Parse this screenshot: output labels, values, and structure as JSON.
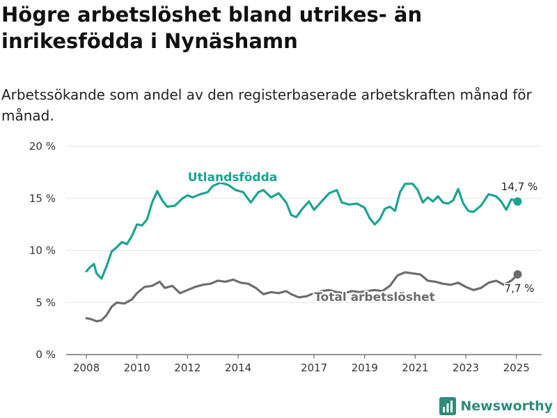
{
  "title": "Högre arbetslöshet bland utrikes- än inrikesfödda i Nynäshamn",
  "subtitle": "Arbetssökande som andel av den registerbaserade arbetskraften månad för månad.",
  "brand": {
    "name": "Newsworthy",
    "logo_icon": "bar-chart-logo-icon",
    "color": "#2e8b7a"
  },
  "chart_data": {
    "type": "line",
    "x_ticks": [
      "2008",
      "2010",
      "2012",
      "2014",
      "2017",
      "2019",
      "2021",
      "2023",
      "2025"
    ],
    "x_tick_values": [
      2008,
      2010,
      2012,
      2014,
      2017,
      2019,
      2021,
      2023,
      2025
    ],
    "x_range": [
      2007.2,
      2026.0
    ],
    "y_ticks": [
      "0 %",
      "5 %",
      "10 %",
      "15 %",
      "20 %"
    ],
    "y_tick_values": [
      0,
      5,
      10,
      15,
      20
    ],
    "ylim": [
      0,
      20
    ],
    "grid": "horizontal",
    "series": [
      {
        "name": "Utlandsfödda",
        "color": "#1aa391",
        "end_label": "14,7 %",
        "points": [
          [
            2008.0,
            8.0
          ],
          [
            2008.15,
            8.4
          ],
          [
            2008.3,
            8.7
          ],
          [
            2008.4,
            7.8
          ],
          [
            2008.6,
            7.3
          ],
          [
            2008.8,
            8.5
          ],
          [
            2009.0,
            9.9
          ],
          [
            2009.2,
            10.3
          ],
          [
            2009.4,
            10.8
          ],
          [
            2009.6,
            10.6
          ],
          [
            2009.8,
            11.4
          ],
          [
            2010.0,
            12.5
          ],
          [
            2010.2,
            12.4
          ],
          [
            2010.4,
            13.0
          ],
          [
            2010.6,
            14.6
          ],
          [
            2010.8,
            15.7
          ],
          [
            2011.0,
            14.8
          ],
          [
            2011.2,
            14.2
          ],
          [
            2011.5,
            14.3
          ],
          [
            2011.8,
            15.0
          ],
          [
            2012.0,
            15.3
          ],
          [
            2012.2,
            15.1
          ],
          [
            2012.5,
            15.4
          ],
          [
            2012.8,
            15.6
          ],
          [
            2013.0,
            16.2
          ],
          [
            2013.3,
            16.5
          ],
          [
            2013.6,
            16.3
          ],
          [
            2013.9,
            15.8
          ],
          [
            2014.2,
            15.6
          ],
          [
            2014.5,
            14.6
          ],
          [
            2014.8,
            15.6
          ],
          [
            2015.0,
            15.8
          ],
          [
            2015.3,
            15.1
          ],
          [
            2015.6,
            15.5
          ],
          [
            2015.9,
            14.6
          ],
          [
            2016.1,
            13.4
          ],
          [
            2016.3,
            13.2
          ],
          [
            2016.5,
            13.9
          ],
          [
            2016.8,
            14.7
          ],
          [
            2017.0,
            13.9
          ],
          [
            2017.3,
            14.7
          ],
          [
            2017.6,
            15.5
          ],
          [
            2017.9,
            15.8
          ],
          [
            2018.1,
            14.6
          ],
          [
            2018.4,
            14.4
          ],
          [
            2018.7,
            14.5
          ],
          [
            2019.0,
            14.1
          ],
          [
            2019.2,
            13.1
          ],
          [
            2019.4,
            12.5
          ],
          [
            2019.6,
            13.0
          ],
          [
            2019.8,
            14.0
          ],
          [
            2020.0,
            14.2
          ],
          [
            2020.2,
            13.8
          ],
          [
            2020.4,
            15.6
          ],
          [
            2020.6,
            16.4
          ],
          [
            2020.9,
            16.4
          ],
          [
            2021.1,
            15.8
          ],
          [
            2021.3,
            14.6
          ],
          [
            2021.5,
            15.1
          ],
          [
            2021.7,
            14.7
          ],
          [
            2021.9,
            15.2
          ],
          [
            2022.1,
            14.6
          ],
          [
            2022.3,
            14.5
          ],
          [
            2022.5,
            14.8
          ],
          [
            2022.7,
            15.9
          ],
          [
            2022.9,
            14.5
          ],
          [
            2023.1,
            13.8
          ],
          [
            2023.3,
            13.7
          ],
          [
            2023.6,
            14.3
          ],
          [
            2023.9,
            15.4
          ],
          [
            2024.2,
            15.2
          ],
          [
            2024.4,
            14.7
          ],
          [
            2024.6,
            13.9
          ],
          [
            2024.8,
            14.9
          ],
          [
            2025.05,
            14.7
          ]
        ]
      },
      {
        "name": "Total arbetslöshet",
        "color": "#6c6c70",
        "end_label": "7,7 %",
        "points": [
          [
            2008.0,
            3.5
          ],
          [
            2008.2,
            3.4
          ],
          [
            2008.4,
            3.2
          ],
          [
            2008.6,
            3.3
          ],
          [
            2008.8,
            3.8
          ],
          [
            2009.0,
            4.6
          ],
          [
            2009.2,
            5.0
          ],
          [
            2009.5,
            4.9
          ],
          [
            2009.8,
            5.3
          ],
          [
            2010.0,
            5.9
          ],
          [
            2010.3,
            6.5
          ],
          [
            2010.6,
            6.6
          ],
          [
            2010.9,
            7.0
          ],
          [
            2011.1,
            6.4
          ],
          [
            2011.4,
            6.6
          ],
          [
            2011.7,
            5.9
          ],
          [
            2012.0,
            6.2
          ],
          [
            2012.3,
            6.5
          ],
          [
            2012.6,
            6.7
          ],
          [
            2012.9,
            6.8
          ],
          [
            2013.2,
            7.1
          ],
          [
            2013.5,
            7.0
          ],
          [
            2013.8,
            7.2
          ],
          [
            2014.1,
            6.9
          ],
          [
            2014.4,
            6.8
          ],
          [
            2014.7,
            6.4
          ],
          [
            2015.0,
            5.8
          ],
          [
            2015.3,
            6.0
          ],
          [
            2015.6,
            5.9
          ],
          [
            2015.9,
            6.1
          ],
          [
            2016.1,
            5.8
          ],
          [
            2016.4,
            5.5
          ],
          [
            2016.7,
            5.6
          ],
          [
            2017.0,
            5.9
          ],
          [
            2017.3,
            6.1
          ],
          [
            2017.6,
            6.2
          ],
          [
            2017.9,
            6.0
          ],
          [
            2018.2,
            5.9
          ],
          [
            2018.5,
            6.1
          ],
          [
            2018.8,
            6.0
          ],
          [
            2019.1,
            6.1
          ],
          [
            2019.4,
            6.2
          ],
          [
            2019.7,
            6.1
          ],
          [
            2020.0,
            6.6
          ],
          [
            2020.3,
            7.6
          ],
          [
            2020.6,
            7.9
          ],
          [
            2020.9,
            7.8
          ],
          [
            2021.2,
            7.7
          ],
          [
            2021.5,
            7.1
          ],
          [
            2021.8,
            7.0
          ],
          [
            2022.1,
            6.8
          ],
          [
            2022.4,
            6.7
          ],
          [
            2022.7,
            6.9
          ],
          [
            2023.0,
            6.5
          ],
          [
            2023.3,
            6.2
          ],
          [
            2023.6,
            6.4
          ],
          [
            2023.9,
            6.9
          ],
          [
            2024.2,
            7.1
          ],
          [
            2024.5,
            6.7
          ],
          [
            2024.8,
            7.1
          ],
          [
            2025.05,
            7.7
          ]
        ]
      }
    ]
  }
}
